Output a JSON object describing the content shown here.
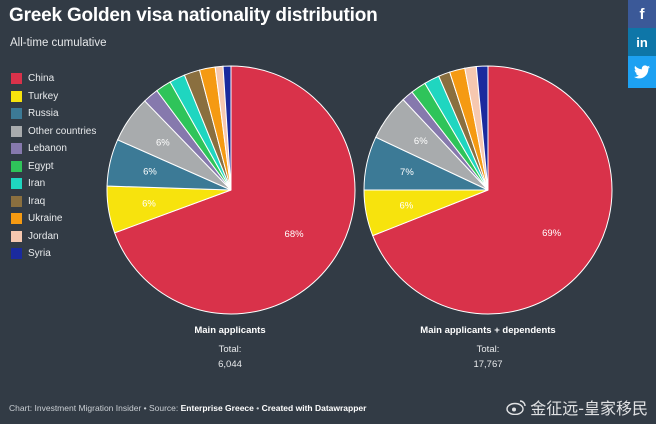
{
  "title": "Greek Golden visa nationality distribution",
  "subtitle": "All-time cumulative",
  "legend": [
    {
      "label": "China",
      "color": "#d9324a"
    },
    {
      "label": "Turkey",
      "color": "#f7e30d"
    },
    {
      "label": "Russia",
      "color": "#3c7a96"
    },
    {
      "label": "Other countries",
      "color": "#a8abad"
    },
    {
      "label": "Lebanon",
      "color": "#8679ad"
    },
    {
      "label": "Egypt",
      "color": "#2fc45a"
    },
    {
      "label": "Iran",
      "color": "#1fd6c0"
    },
    {
      "label": "Iraq",
      "color": "#8a6f3f"
    },
    {
      "label": "Ukraine",
      "color": "#f59a12"
    },
    {
      "label": "Jordan",
      "color": "#f6c8b0"
    },
    {
      "label": "Syria",
      "color": "#1a2a9e"
    }
  ],
  "chart_data": [
    {
      "type": "pie",
      "title": "Main applicants",
      "total_label": "Total:",
      "total": "6,044",
      "categories": [
        "China",
        "Turkey",
        "Russia",
        "Other countries",
        "Lebanon",
        "Egypt",
        "Iran",
        "Iraq",
        "Ukraine",
        "Jordan",
        "Syria"
      ],
      "values": [
        68,
        6,
        6,
        6,
        2,
        2,
        2,
        2,
        2,
        1,
        1
      ],
      "labels": [
        "68%",
        "6%",
        "6%",
        "6%",
        "",
        "",
        "",
        "",
        "",
        "",
        ""
      ]
    },
    {
      "type": "pie",
      "title": "Main applicants + dependents",
      "total_label": "Total:",
      "total": "17,767",
      "categories": [
        "China",
        "Turkey",
        "Russia",
        "Other countries",
        "Lebanon",
        "Egypt",
        "Iran",
        "Iraq",
        "Ukraine",
        "Jordan",
        "Syria"
      ],
      "values": [
        69,
        6,
        7,
        6,
        1.5,
        2,
        2,
        1.5,
        2,
        1.5,
        1.5
      ],
      "labels": [
        "69%",
        "6%",
        "7%",
        "6%",
        "",
        "",
        "",
        "",
        "",
        "",
        ""
      ]
    }
  ],
  "footer": {
    "prefix": "Chart: Investment Migration Insider • Source: ",
    "source": "Enterprise Greece",
    "sep": " • ",
    "created": "Created with Datawrapper"
  },
  "social": {
    "facebook": "f",
    "linkedin": "in",
    "twitter": "t"
  },
  "watermark": "金征远-皇家移民"
}
